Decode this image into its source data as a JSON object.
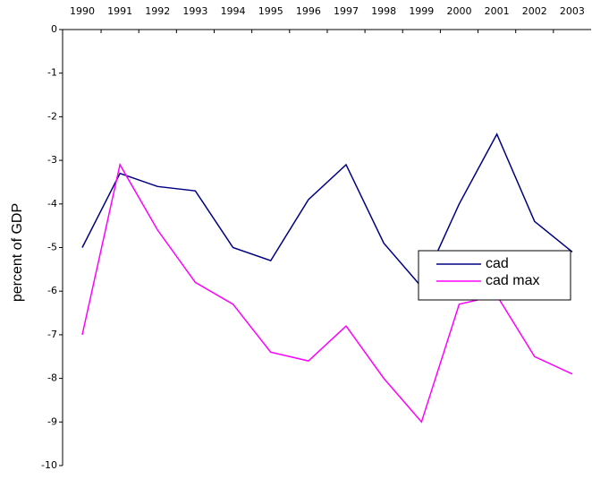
{
  "chart_data": {
    "type": "line",
    "y_label": "percent of GDP",
    "categories": [
      "1990",
      "1991",
      "1992",
      "1993",
      "1994",
      "1995",
      "1996",
      "1997",
      "1998",
      "1999",
      "2000",
      "2001",
      "2002",
      "2003"
    ],
    "series": [
      {
        "name": "cad",
        "color": "#000080",
        "values": [
          -5,
          -3.3,
          -3.6,
          -3.7,
          -5,
          -5.3,
          -3.9,
          -3.1,
          -4.9,
          -5.9,
          -4,
          -2.4,
          -4.4,
          -5.1
        ]
      },
      {
        "name": "cad max",
        "color": "#ff00ff",
        "values": [
          -7,
          -3.1,
          -4.6,
          -5.8,
          -6.3,
          -7.4,
          -7.6,
          -6.8,
          -8,
          -9,
          -6.3,
          -6.1,
          -7.5,
          -7.9
        ]
      }
    ],
    "ylim": [
      -10,
      0
    ],
    "yticks": [
      0,
      -1,
      -2,
      -3,
      -4,
      -5,
      -6,
      -7,
      -8,
      -9,
      -10
    ],
    "legend": "right"
  }
}
